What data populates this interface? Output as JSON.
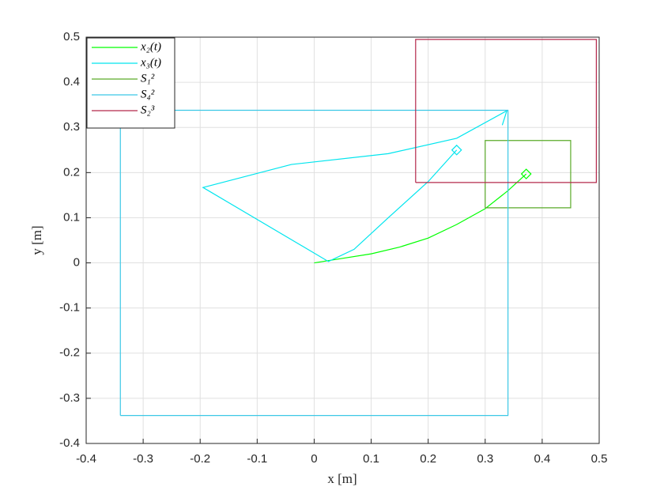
{
  "chart_data": {
    "type": "line",
    "xlabel": "x [m]",
    "ylabel": "y [m]",
    "xlim": [
      -0.4,
      0.5
    ],
    "ylim": [
      -0.4,
      0.5
    ],
    "xticks": [
      -0.4,
      -0.3,
      -0.2,
      -0.1,
      0,
      0.1,
      0.2,
      0.3,
      0.4,
      0.5
    ],
    "yticks": [
      -0.4,
      -0.3,
      -0.2,
      -0.1,
      0,
      0.1,
      0.2,
      0.3,
      0.4,
      0.5
    ],
    "grid": true,
    "legend": "upper left",
    "series": [
      {
        "name": "x₂(t)",
        "color": "#00ff00",
        "end_marker": "diamond",
        "x": [
          0,
          0.05,
          0.1,
          0.15,
          0.2,
          0.25,
          0.3,
          0.34,
          0.372
        ],
        "y": [
          0,
          0.01,
          0.02,
          0.035,
          0.055,
          0.085,
          0.12,
          0.16,
          0.197
        ]
      },
      {
        "name": "x₃(t)",
        "color": "#00e5ee",
        "end_marker": "diamond",
        "x": [
          0.33,
          0.338,
          0.25,
          0.13,
          -0.04,
          -0.195,
          0.025,
          0.07,
          0.13,
          0.2,
          0.25
        ],
        "y": [
          0.305,
          0.337,
          0.276,
          0.242,
          0.218,
          0.167,
          0.003,
          0.03,
          0.1,
          0.18,
          0.25
        ]
      },
      {
        "name": "S₁²",
        "color": "#5aaa28",
        "x": [
          0.3,
          0.45,
          0.45,
          0.3,
          0.3
        ],
        "y": [
          0.122,
          0.122,
          0.271,
          0.271,
          0.122
        ]
      },
      {
        "name": "S₄²",
        "color": "#3cc8e6",
        "x": [
          -0.34,
          0.34,
          0.34,
          -0.34,
          -0.34
        ],
        "y": [
          -0.338,
          -0.338,
          0.338,
          0.338,
          -0.338
        ]
      },
      {
        "name": "S₂³",
        "color": "#b4284b",
        "x": [
          0.178,
          0.495,
          0.495,
          0.178,
          0.178
        ],
        "y": [
          0.178,
          0.178,
          0.495,
          0.495,
          0.178
        ]
      }
    ]
  }
}
